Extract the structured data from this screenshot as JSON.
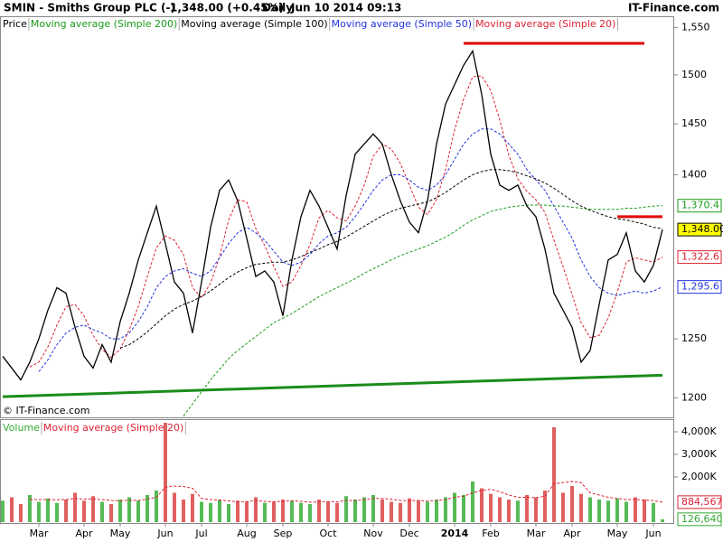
{
  "header": {
    "symbol": "SMIN - Smiths Group PLC (-)",
    "quote": "1,348.00 (+0.45%)",
    "period": "Daily",
    "timestamp": "Jun 10 2014 09:13",
    "brand": "IT-Finance.com"
  },
  "chart_data": [
    {
      "type": "line",
      "log_scale": true,
      "copyright": "© IT-Finance.com",
      "categories": [
        null,
        null,
        null,
        null,
        "Mar",
        null,
        null,
        null,
        null,
        "Apr",
        null,
        null,
        null,
        "May",
        null,
        null,
        null,
        null,
        "Jun",
        null,
        null,
        null,
        "Jul",
        null,
        null,
        null,
        null,
        "Aug",
        null,
        null,
        null,
        "Sep",
        null,
        null,
        null,
        null,
        "Oct",
        null,
        null,
        null,
        null,
        "Nov",
        null,
        null,
        null,
        "Dec",
        null,
        null,
        null,
        null,
        "2014",
        null,
        null,
        null,
        "Feb",
        null,
        null,
        null,
        null,
        "Mar",
        null,
        null,
        null,
        "Apr",
        null,
        null,
        null,
        null,
        "May",
        null,
        null,
        null,
        "Jun",
        null
      ],
      "ylim": [
        1184,
        1562
      ],
      "yticks": [
        1200,
        1250,
        1400,
        1450,
        1500,
        {
          "value": 1550,
          "label": "1,550"
        }
      ],
      "series": [
        {
          "name": "Price",
          "color": "#000000",
          "dash": false,
          "last_label": "1,348.00",
          "label_fill": "#ffff00",
          "values": [
            1235,
            1225,
            1215,
            1230,
            1250,
            1275,
            1295,
            1290,
            1260,
            1235,
            1225,
            1245,
            1230,
            1265,
            1290,
            1320,
            1345,
            1370,
            1335,
            1300,
            1290,
            1255,
            1300,
            1350,
            1385,
            1395,
            1375,
            1340,
            1305,
            1310,
            1300,
            1270,
            1320,
            1360,
            1385,
            1370,
            1350,
            1330,
            1380,
            1420,
            1430,
            1440,
            1430,
            1400,
            1375,
            1355,
            1345,
            1375,
            1430,
            1470,
            1490,
            1510,
            1525,
            1480,
            1420,
            1390,
            1385,
            1390,
            1370,
            1360,
            1330,
            1290,
            1275,
            1260,
            1230,
            1240,
            1280,
            1320,
            1325,
            1345,
            1310,
            1300,
            1315,
            1348
          ]
        },
        {
          "name": "Moving average (Simple 200)",
          "color": "#1a9a1a",
          "dash": true,
          "last_label": "1,370.4",
          "label_fill": "#ffffff",
          "values": [
            null,
            null,
            null,
            null,
            null,
            null,
            null,
            null,
            null,
            null,
            null,
            null,
            null,
            null,
            null,
            null,
            null,
            null,
            null,
            null,
            1185,
            1195,
            1205,
            1215,
            1224,
            1233,
            1240,
            1246,
            1252,
            1258,
            1264,
            1268,
            1272,
            1277,
            1282,
            1287,
            1291,
            1295,
            1299,
            1303,
            1308,
            1312,
            1316,
            1320,
            1324,
            1327,
            1330,
            1333,
            1337,
            1341,
            1346,
            1352,
            1357,
            1361,
            1365,
            1367,
            1369,
            1370,
            1371,
            1371,
            1371,
            1370,
            1370,
            1369,
            1368,
            1367,
            1367,
            1367,
            1367,
            1368,
            1368,
            1369,
            1370,
            1370.4
          ]
        },
        {
          "name": "Moving average (Simple 100)",
          "color": "#000000",
          "dash": true,
          "values": [
            null,
            null,
            null,
            null,
            null,
            null,
            null,
            null,
            null,
            null,
            null,
            null,
            null,
            1242,
            1245,
            1250,
            1256,
            1263,
            1270,
            1276,
            1280,
            1283,
            1287,
            1292,
            1298,
            1304,
            1309,
            1313,
            1316,
            1317,
            1318,
            1318,
            1320,
            1323,
            1327,
            1330,
            1334,
            1337,
            1341,
            1346,
            1351,
            1356,
            1361,
            1365,
            1368,
            1370,
            1372,
            1374,
            1378,
            1383,
            1389,
            1395,
            1400,
            1403,
            1405,
            1405,
            1404,
            1402,
            1399,
            1396,
            1392,
            1387,
            1381,
            1375,
            1370,
            1366,
            1363,
            1360,
            1358,
            1357,
            1355,
            1353,
            1350,
            1349
          ]
        },
        {
          "name": "Moving average (Simple 50)",
          "color": "#2233dd",
          "dash": true,
          "last_label": "1,295.6",
          "label_fill": "#ffffff",
          "values": [
            null,
            null,
            null,
            null,
            1222,
            1232,
            1245,
            1255,
            1260,
            1262,
            1258,
            1255,
            1250,
            1250,
            1255,
            1265,
            1278,
            1295,
            1305,
            1310,
            1312,
            1308,
            1305,
            1310,
            1322,
            1335,
            1345,
            1350,
            1345,
            1338,
            1328,
            1318,
            1315,
            1318,
            1325,
            1335,
            1342,
            1345,
            1350,
            1360,
            1372,
            1385,
            1395,
            1400,
            1400,
            1395,
            1388,
            1385,
            1390,
            1400,
            1415,
            1430,
            1440,
            1445,
            1445,
            1440,
            1430,
            1420,
            1405,
            1395,
            1385,
            1370,
            1355,
            1340,
            1320,
            1305,
            1295,
            1290,
            1288,
            1290,
            1292,
            1290,
            1292,
            1295.6
          ]
        },
        {
          "name": "Moving average (Simple 20)",
          "color": "#dd2233",
          "dash": true,
          "last_label": "1,322.6",
          "label_fill": "#ffffff",
          "values": [
            null,
            null,
            null,
            1226,
            1230,
            1243,
            1262,
            1278,
            1280,
            1270,
            1253,
            1241,
            1234,
            1241,
            1258,
            1278,
            1305,
            1331,
            1342,
            1338,
            1325,
            1295,
            1286,
            1299,
            1323,
            1357,
            1376,
            1374,
            1349,
            1333,
            1314,
            1296,
            1300,
            1315,
            1334,
            1359,
            1366,
            1359,
            1356,
            1370,
            1390,
            1418,
            1430,
            1425,
            1411,
            1390,
            1369,
            1362,
            1376,
            1405,
            1444,
            1475,
            1498,
            1499,
            1484,
            1454,
            1419,
            1396,
            1384,
            1376,
            1364,
            1338,
            1314,
            1289,
            1264,
            1251,
            1253,
            1268,
            1291,
            1318,
            1322,
            1320,
            1318,
            1322.6
          ]
        }
      ],
      "trendlines": [
        {
          "color": "#e00000",
          "start": 51,
          "end": 71,
          "values": [
            1533,
            1533
          ]
        },
        {
          "color": "#e00000",
          "start": 68,
          "end": 73,
          "values": [
            1360,
            1360
          ]
        },
        {
          "color": "#1a8c1a",
          "start": 0,
          "end": 73,
          "values": [
            1201,
            1219
          ]
        }
      ]
    },
    {
      "type": "bar",
      "ylim": [
        0,
        4520000
      ],
      "yticks": [
        {
          "value": 2000000,
          "label": "2,000K"
        },
        {
          "value": 3000000,
          "label": "3,000K"
        },
        {
          "value": 4000000,
          "label": "4,000K"
        }
      ],
      "series": [
        {
          "name": "Volume",
          "color": "#33aa33",
          "up_color": "#55bb55",
          "down_color": "#e06060",
          "last_label": "126,640",
          "values": [
            950000,
            1100000,
            800000,
            1200000,
            900000,
            1050000,
            850000,
            1000000,
            1300000,
            950000,
            1150000,
            900000,
            800000,
            1000000,
            1100000,
            950000,
            1200000,
            1400000,
            4400000,
            1300000,
            1000000,
            1250000,
            900000,
            850000,
            1000000,
            800000,
            950000,
            900000,
            1100000,
            850000,
            900000,
            1000000,
            950000,
            850000,
            800000,
            1000000,
            900000,
            850000,
            1150000,
            1000000,
            1100000,
            1200000,
            1000000,
            900000,
            850000,
            1050000,
            950000,
            900000,
            1000000,
            1100000,
            1300000,
            1200000,
            1800000,
            1500000,
            1250000,
            1100000,
            1000000,
            950000,
            1200000,
            1100000,
            1400000,
            4200000,
            1300000,
            1600000,
            1250000,
            1100000,
            1000000,
            950000,
            1050000,
            900000,
            1100000,
            1000000,
            850000,
            126640
          ]
        },
        {
          "name": "Moving average (Simple 20)",
          "color": "#dd2233",
          "dash": true,
          "last_label": "884,567",
          "values": [
            null,
            null,
            null,
            1010000,
            1000000,
            1000000,
            990000,
            1000000,
            1050000,
            1020000,
            1030000,
            1000000,
            960000,
            950000,
            970000,
            960000,
            1020000,
            1100000,
            1550000,
            1600000,
            1580000,
            1500000,
            1050000,
            1000000,
            980000,
            940000,
            900000,
            910000,
            950000,
            920000,
            900000,
            920000,
            950000,
            920000,
            880000,
            900000,
            910000,
            900000,
            960000,
            950000,
            1000000,
            1050000,
            1050000,
            1020000,
            960000,
            950000,
            960000,
            930000,
            960000,
            1000000,
            1100000,
            1150000,
            1300000,
            1400000,
            1450000,
            1350000,
            1200000,
            1100000,
            1100000,
            1080000,
            1150000,
            1700000,
            1750000,
            1800000,
            1750000,
            1300000,
            1200000,
            1100000,
            1050000,
            1000000,
            1000000,
            980000,
            950000,
            884567
          ]
        }
      ]
    }
  ]
}
